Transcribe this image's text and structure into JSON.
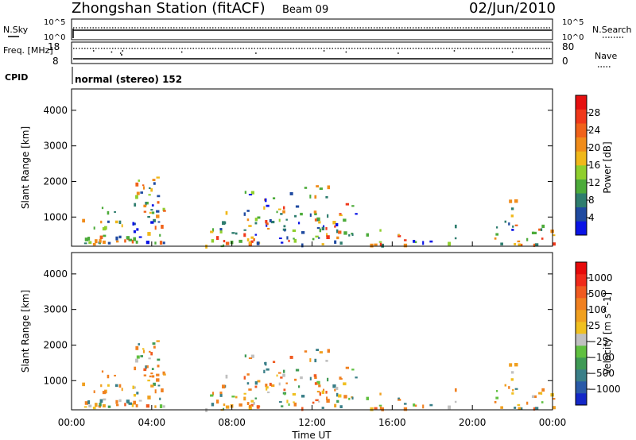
{
  "header": {
    "station": "Zhongshan Station (fitACF)",
    "beam": "Beam 09",
    "date": "02/Jun/2010",
    "cpid_label": "CPID",
    "cpid_value": "normal (stereo) 152"
  },
  "chart_data": [
    {
      "type": "line",
      "panel": "noise",
      "left_axis": {
        "label": "N.Sky",
        "ticks": [
          "10^5",
          "10^0"
        ]
      },
      "right_axis": {
        "label": "N.Search",
        "ticks": [
          "10^5",
          "10^0"
        ]
      },
      "series": [
        {
          "name": "N.Sky",
          "style": "solid"
        },
        {
          "name": "N.Search",
          "style": "dotted"
        }
      ]
    },
    {
      "type": "line",
      "panel": "frequency",
      "left_axis": {
        "label": "Freq. [MHz]",
        "ticks": [
          18,
          8
        ],
        "range": [
          8,
          18
        ]
      },
      "right_axis": {
        "label": "Nave",
        "ticks": [
          80,
          0
        ],
        "range": [
          0,
          80
        ]
      },
      "series": [
        {
          "name": "Freq.",
          "style": "dotted",
          "approx_value": 16.8
        },
        {
          "name": "Nave",
          "style": "solid",
          "approx_value": 8
        }
      ]
    },
    {
      "type": "heatmap",
      "panel": "power",
      "ylabel": "Slant Range [km]",
      "yticks": [
        1000,
        2000,
        3000,
        4000
      ],
      "ylim": [
        180,
        4600
      ],
      "xlim": [
        0,
        24
      ],
      "colorbar": {
        "label": "Power [dB]",
        "ticks": [
          4,
          8,
          12,
          16,
          20,
          24,
          28
        ],
        "colors": [
          "#0a14e6",
          "#1f4aa0",
          "#2e7d6e",
          "#4cab3a",
          "#8fcf2d",
          "#f0b81a",
          "#f08c1a",
          "#f0621a",
          "#f0381a",
          "#e61010"
        ]
      }
    },
    {
      "type": "heatmap",
      "panel": "velocity",
      "ylabel": "Slant Range [km]",
      "yticks": [
        1000,
        2000,
        3000,
        4000
      ],
      "ylim": [
        180,
        4600
      ],
      "xlim": [
        0,
        24
      ],
      "xlabel": "Time UT",
      "xticks": [
        "00:00",
        "04:00",
        "08:00",
        "12:00",
        "16:00",
        "20:00",
        "00:00"
      ],
      "colorbar": {
        "label": "Velocity [m s^-1]",
        "ticks": [
          "1000",
          "500",
          "100",
          "25",
          "−25",
          "−100",
          "−500",
          "−1000"
        ],
        "colors": [
          "#1428c8",
          "#2a5aa8",
          "#3a7f88",
          "#3f9a55",
          "#60c040",
          "#c0c0c0",
          "#f0c020",
          "#f0a020",
          "#f08020",
          "#f05a20",
          "#f02a1a",
          "#e60a0a"
        ]
      }
    }
  ],
  "scatter_activity": [
    {
      "t0": 0.3,
      "t1": 1.6,
      "r0": 250,
      "r1": 1100
    },
    {
      "t0": 1.4,
      "t1": 2.6,
      "r0": 300,
      "r1": 1400
    },
    {
      "t0": 2.6,
      "t1": 4.6,
      "r0": 300,
      "r1": 2100
    },
    {
      "t0": 3.4,
      "t1": 4.3,
      "r0": 1100,
      "r1": 2200
    },
    {
      "t0": 6.6,
      "t1": 7.6,
      "r0": 200,
      "r1": 800
    },
    {
      "t0": 7.2,
      "t1": 9.4,
      "r0": 300,
      "r1": 1400
    },
    {
      "t0": 8.5,
      "t1": 9.0,
      "r0": 1200,
      "r1": 1900
    },
    {
      "t0": 9.5,
      "t1": 11.3,
      "r0": 300,
      "r1": 1800
    },
    {
      "t0": 11.3,
      "t1": 12.8,
      "r0": 250,
      "r1": 2000
    },
    {
      "t0": 13.0,
      "t1": 14.2,
      "r0": 300,
      "r1": 1600
    },
    {
      "t0": 14.3,
      "t1": 15.6,
      "r0": 250,
      "r1": 700
    },
    {
      "t0": 16.2,
      "t1": 18.2,
      "r0": 250,
      "r1": 650
    },
    {
      "t0": 18.7,
      "t1": 19.2,
      "r0": 300,
      "r1": 800
    },
    {
      "t0": 20.8,
      "t1": 24.0,
      "r0": 250,
      "r1": 900
    },
    {
      "t0": 21.6,
      "t1": 22.2,
      "r0": 900,
      "r1": 1600
    }
  ]
}
